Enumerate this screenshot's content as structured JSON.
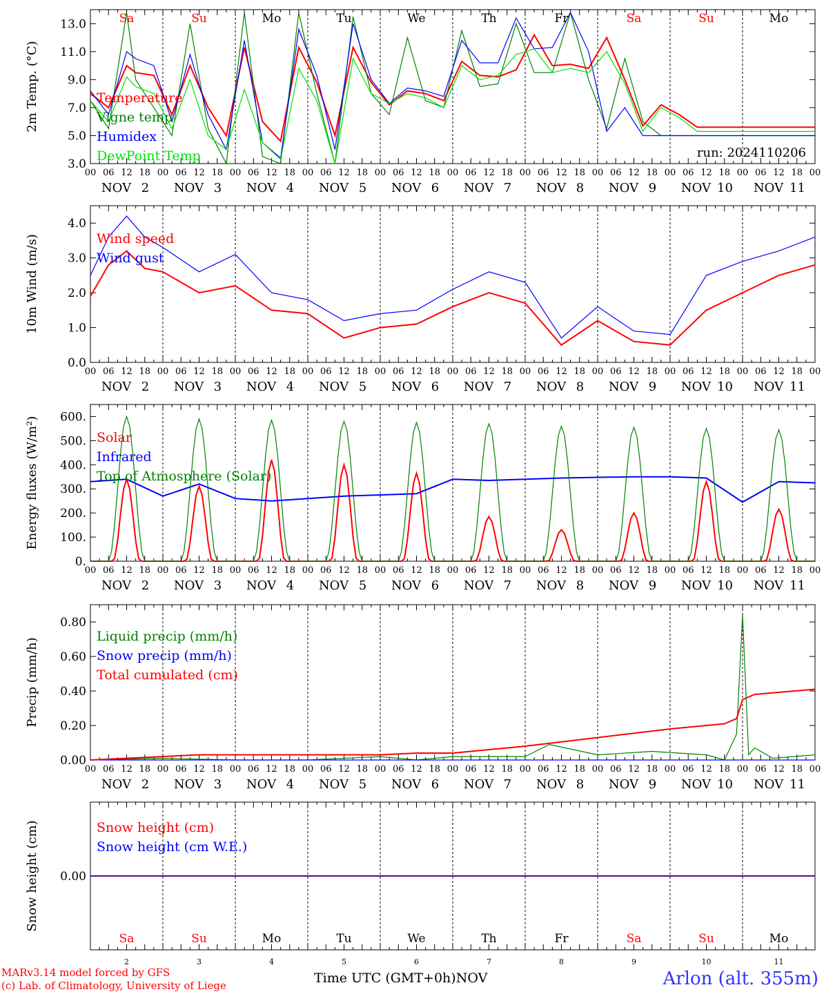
{
  "run_label": "run: 2024110206",
  "footer": {
    "model": "MARv3.14 model forced by GFS",
    "credit": "(c) Lab. of Climatology, University of Liege"
  },
  "x_axis_title": "Time UTC (GMT+0h)",
  "month_label": "NOV",
  "location": "Arlon (alt. 355m)",
  "days": [
    {
      "num": "2",
      "dow": "Sa",
      "weekend": true
    },
    {
      "num": "3",
      "dow": "Su",
      "weekend": true
    },
    {
      "num": "4",
      "dow": "Mo",
      "weekend": false
    },
    {
      "num": "5",
      "dow": "Tu",
      "weekend": false
    },
    {
      "num": "6",
      "dow": "We",
      "weekend": false
    },
    {
      "num": "7",
      "dow": "Th",
      "weekend": false
    },
    {
      "num": "8",
      "dow": "Fr",
      "weekend": false
    },
    {
      "num": "9",
      "dow": "Sa",
      "weekend": true
    },
    {
      "num": "10",
      "dow": "Su",
      "weekend": true
    },
    {
      "num": "11",
      "dow": "Mo",
      "weekend": false
    }
  ],
  "hour_ticks": [
    "00",
    "06",
    "12",
    "18"
  ],
  "colors": {
    "red": "#ff0000",
    "green": "#008000",
    "blue": "#0000ff",
    "lightgreen": "#00e000",
    "purple": "#8000a0",
    "weekend": "#ff0000",
    "weekday": "#000000"
  },
  "chart_data": [
    {
      "type": "line",
      "ylabel": "2m Temp. (°C)",
      "ylim": [
        3,
        14
      ],
      "yticks": [
        "3.0",
        "5.0",
        "7.0",
        "9.0",
        "11.0",
        "13.0"
      ],
      "x_unit": "hours since 2 Nov 00 UTC",
      "series": [
        {
          "name": "Temperature",
          "color": "#ff0000",
          "x": [
            0,
            6,
            12,
            15,
            21,
            27,
            33,
            39,
            45,
            51,
            57,
            63,
            69,
            75,
            81,
            87,
            93,
            99,
            105,
            111,
            117,
            123,
            129,
            135,
            141,
            147,
            153,
            159,
            165,
            171,
            177,
            183,
            189,
            195,
            201,
            207,
            213,
            219,
            225,
            231,
            237,
            240
          ],
          "y": [
            8.0,
            7.0,
            10.0,
            9.5,
            9.3,
            6.5,
            10.0,
            7.0,
            5.0,
            11.3,
            6.0,
            4.6,
            11.3,
            8.8,
            5.0,
            11.3,
            8.8,
            7.2,
            8.2,
            8.0,
            7.5,
            10.3,
            9.3,
            9.2,
            9.7,
            12.2,
            10.0,
            10.1,
            9.8,
            12.0,
            9.0,
            5.7,
            7.2,
            6.5,
            5.6,
            5.6,
            5.6,
            5.6,
            5.6,
            5.6,
            5.6,
            5.6
          ]
        },
        {
          "name": "Vigne temp",
          "color": "#008000",
          "x": [
            0,
            6,
            12,
            15,
            21,
            27,
            33,
            39,
            45,
            51,
            57,
            63,
            69,
            75,
            81,
            87,
            93,
            99,
            105,
            111,
            117,
            123,
            129,
            135,
            141,
            147,
            153,
            159,
            165,
            171,
            177,
            183,
            189,
            195,
            201,
            207,
            213,
            219,
            225,
            231,
            237,
            240
          ],
          "y": [
            7.5,
            5.5,
            13.8,
            9.0,
            7.0,
            5.0,
            13.0,
            5.5,
            2.5,
            13.8,
            3.5,
            3.0,
            13.8,
            8.0,
            2.0,
            13.5,
            8.0,
            6.5,
            12.0,
            7.5,
            7.0,
            12.5,
            8.5,
            8.7,
            13.0,
            9.5,
            9.5,
            13.8,
            9.0,
            5.5,
            10.5,
            6.0,
            5.0,
            5.0,
            5.0,
            5.0,
            5.0,
            5.0,
            5.0,
            5.0,
            5.0,
            5.0
          ]
        },
        {
          "name": "Humidex",
          "color": "#0000ff",
          "x": [
            0,
            6,
            12,
            15,
            21,
            27,
            33,
            39,
            45,
            51,
            57,
            63,
            69,
            75,
            81,
            87,
            93,
            99,
            105,
            111,
            117,
            123,
            129,
            135,
            141,
            147,
            153,
            159,
            165,
            171,
            177,
            183,
            189,
            195,
            201,
            207,
            213,
            219,
            225,
            231,
            237,
            240
          ],
          "y": [
            8.2,
            6.5,
            11.0,
            10.5,
            10.0,
            6.0,
            10.8,
            6.5,
            4.0,
            11.8,
            4.5,
            3.4,
            12.6,
            9.3,
            4.0,
            13.0,
            9.0,
            7.3,
            8.4,
            8.2,
            7.8,
            11.8,
            10.2,
            10.2,
            13.4,
            11.2,
            11.3,
            13.8,
            11.0,
            5.3,
            7.0,
            5.0,
            5.0,
            5.0,
            5.0,
            5.0,
            5.0,
            5.0,
            5.0,
            5.0,
            5.0,
            5.0
          ]
        },
        {
          "name": "DewPoint Temp",
          "color": "#00e000",
          "x": [
            0,
            6,
            12,
            15,
            21,
            27,
            33,
            39,
            45,
            51,
            57,
            63,
            69,
            75,
            81,
            87,
            93,
            99,
            105,
            111,
            117,
            123,
            129,
            135,
            141,
            147,
            153,
            159,
            165,
            171,
            177,
            183,
            189,
            195,
            201,
            207,
            213,
            219,
            225,
            231,
            237,
            240
          ],
          "y": [
            7.5,
            6.0,
            9.2,
            8.5,
            8.0,
            5.5,
            9.0,
            5.0,
            4.0,
            8.3,
            4.5,
            3.3,
            9.8,
            7.5,
            3.0,
            10.5,
            8.0,
            7.3,
            8.0,
            7.7,
            7.0,
            10.0,
            9.0,
            9.3,
            10.8,
            11.2,
            9.5,
            9.8,
            9.5,
            11.0,
            8.7,
            5.3,
            7.0,
            6.3,
            5.3,
            5.3,
            5.3,
            5.3,
            5.3,
            5.3,
            5.3,
            5.3
          ]
        }
      ]
    },
    {
      "type": "line",
      "ylabel": "10m Wind (m/s)",
      "ylim": [
        0,
        4.5
      ],
      "yticks": [
        "0.0",
        "1.0",
        "2.0",
        "3.0",
        "4.0"
      ],
      "x_unit": "hours since 2 Nov 00 UTC",
      "series": [
        {
          "name": "Wind speed",
          "color": "#ff0000",
          "x": [
            0,
            6,
            12,
            18,
            24,
            36,
            48,
            60,
            72,
            84,
            96,
            108,
            120,
            132,
            144,
            156,
            168,
            180,
            192,
            204,
            216,
            228,
            240
          ],
          "y": [
            1.9,
            2.8,
            3.2,
            2.7,
            2.6,
            2.0,
            2.2,
            1.5,
            1.4,
            0.7,
            1.0,
            1.1,
            1.6,
            2.0,
            1.7,
            0.5,
            1.2,
            0.6,
            0.5,
            1.5,
            2.0,
            2.5,
            2.8
          ]
        },
        {
          "name": "Wind gust",
          "color": "#0000ff",
          "x": [
            0,
            6,
            12,
            18,
            24,
            36,
            48,
            60,
            72,
            84,
            96,
            108,
            120,
            132,
            144,
            156,
            168,
            180,
            192,
            204,
            216,
            228,
            240
          ],
          "y": [
            2.5,
            3.6,
            4.2,
            3.6,
            3.3,
            2.6,
            3.1,
            2.0,
            1.8,
            1.2,
            1.4,
            1.5,
            2.1,
            2.6,
            2.3,
            0.7,
            1.6,
            0.9,
            0.8,
            2.5,
            2.9,
            3.2,
            3.6
          ]
        }
      ]
    },
    {
      "type": "line",
      "ylabel": "Energy fluxes (W/m²)",
      "ylim": [
        0,
        650
      ],
      "yticks": [
        "0.",
        "100.",
        "200.",
        "300.",
        "400.",
        "500.",
        "600."
      ],
      "x_unit": "hours since 2 Nov 00 UTC",
      "daily_peak_hour": 12,
      "series": [
        {
          "name": "Solar",
          "color": "#ff0000",
          "daily_peaks": [
            340,
            310,
            420,
            400,
            365,
            185,
            130,
            200,
            330,
            215
          ]
        },
        {
          "name": "Infrared",
          "color": "#0000ff",
          "x": [
            0,
            12,
            24,
            36,
            48,
            60,
            72,
            84,
            96,
            108,
            120,
            132,
            144,
            156,
            168,
            180,
            192,
            204,
            216,
            228,
            240
          ],
          "y": [
            330,
            340,
            270,
            320,
            260,
            250,
            260,
            270,
            275,
            280,
            340,
            335,
            340,
            345,
            348,
            350,
            350,
            345,
            245,
            330,
            325
          ]
        },
        {
          "name": "Top of Atmosphere (Solar)",
          "color": "#008000",
          "daily_peaks": [
            600,
            590,
            585,
            580,
            575,
            570,
            560,
            555,
            550,
            545
          ]
        }
      ]
    },
    {
      "type": "line",
      "ylabel": "Precip (mm/h)",
      "ylim": [
        0,
        0.9
      ],
      "yticks": [
        "0.00",
        "0.20",
        "0.40",
        "0.60",
        "0.80"
      ],
      "x_unit": "hours since 2 Nov 00 UTC",
      "series": [
        {
          "name": "Liquid precip (mm/h)",
          "color": "#008000",
          "x": [
            0,
            24,
            48,
            72,
            96,
            108,
            120,
            144,
            152,
            168,
            186,
            204,
            210,
            214,
            216,
            218,
            220,
            226,
            240
          ],
          "y": [
            0.0,
            0.01,
            0.0,
            0.0,
            0.02,
            0.0,
            0.02,
            0.02,
            0.09,
            0.03,
            0.05,
            0.03,
            0.0,
            0.15,
            0.84,
            0.03,
            0.07,
            0.01,
            0.03
          ]
        },
        {
          "name": "Snow precip (mm/h)",
          "color": "#0000ff",
          "x": [
            0,
            240
          ],
          "y": [
            0,
            0
          ]
        },
        {
          "name": "Total cumulated (cm)",
          "color": "#ff0000",
          "x": [
            0,
            24,
            36,
            96,
            108,
            120,
            144,
            168,
            192,
            210,
            214,
            216,
            220,
            240
          ],
          "y": [
            0.0,
            0.02,
            0.03,
            0.03,
            0.04,
            0.04,
            0.08,
            0.13,
            0.18,
            0.21,
            0.24,
            0.35,
            0.38,
            0.41
          ]
        }
      ]
    },
    {
      "type": "line",
      "ylabel": "Snow height (cm)",
      "ylim": [
        -1,
        1
      ],
      "yticks": [
        "0.00"
      ],
      "x_unit": "hours since 2 Nov 00 UTC",
      "series": [
        {
          "name": "Snow height (cm)",
          "color": "#ff0000",
          "x": [
            0,
            240
          ],
          "y": [
            0,
            0
          ]
        },
        {
          "name": "Snow height (cm W.E.)",
          "color": "#0000ff",
          "x": [
            0,
            240
          ],
          "y": [
            0,
            0
          ]
        }
      ]
    }
  ]
}
